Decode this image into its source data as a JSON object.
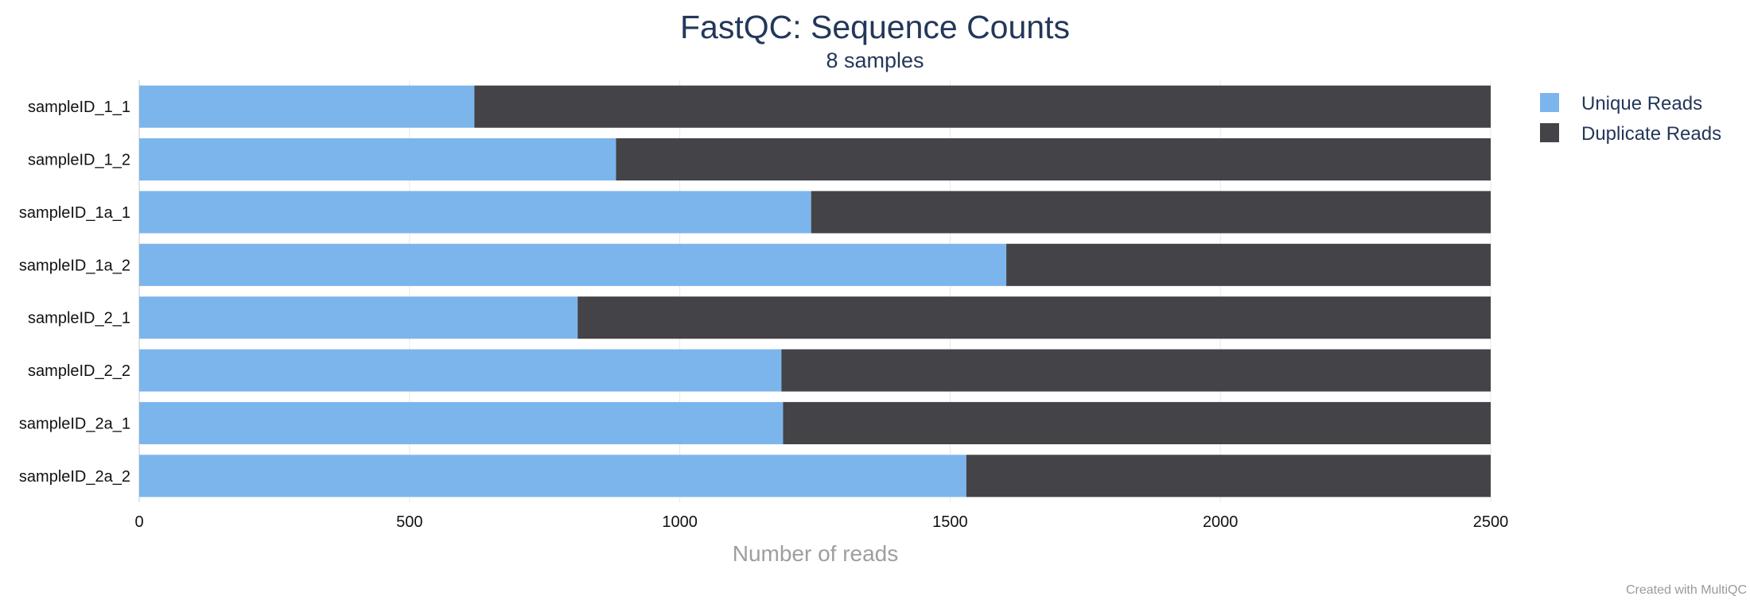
{
  "chart_data": {
    "type": "bar",
    "orientation": "horizontal",
    "stacked": true,
    "title": "FastQC: Sequence Counts",
    "subtitle": "8 samples",
    "xlabel": "Number of reads",
    "ylabel": "",
    "xlim": [
      0,
      2500
    ],
    "x_ticks": [
      "0",
      "500",
      "1000",
      "1500",
      "2000",
      "2500"
    ],
    "grid": true,
    "legend_position": "top-right",
    "categories": [
      "sampleID_1_1",
      "sampleID_1_2",
      "sampleID_1a_1",
      "sampleID_1a_2",
      "sampleID_2_1",
      "sampleID_2_2",
      "sampleID_2a_1",
      "sampleID_2a_2"
    ],
    "series": [
      {
        "name": "Unique Reads",
        "color": "#7cb5ec",
        "values": [
          620,
          882,
          1243,
          1604,
          811,
          1188,
          1191,
          1530
        ]
      },
      {
        "name": "Duplicate Reads",
        "color": "#434348",
        "values": [
          1880,
          1618,
          1257,
          896,
          1689,
          1312,
          1309,
          970
        ]
      }
    ],
    "credit": "Created with MultiQC"
  }
}
